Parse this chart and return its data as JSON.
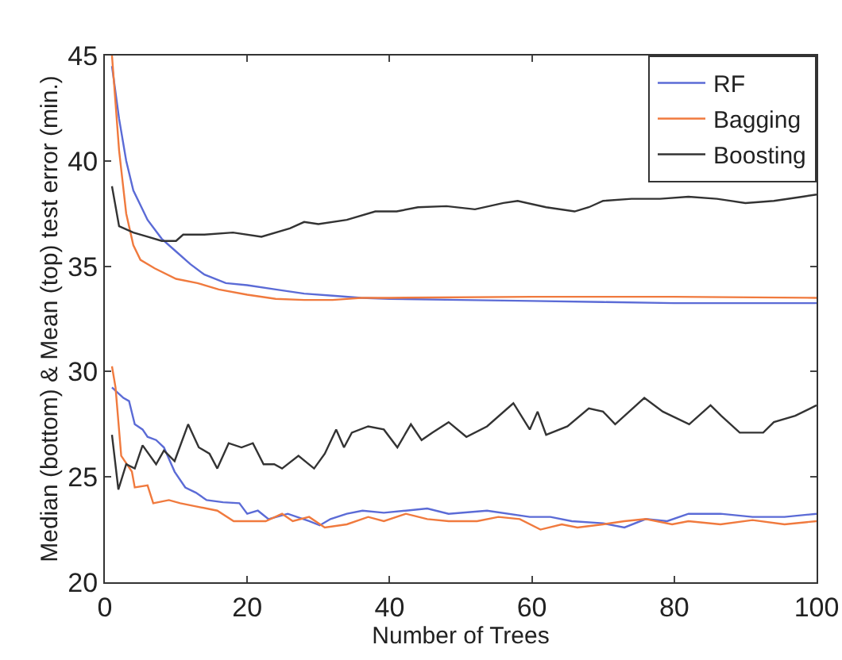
{
  "chart_data": {
    "type": "line",
    "xlabel": "Number of Trees",
    "ylabel": "Median (bottom) & Mean (top) test error (min.)",
    "xlim": [
      0,
      100
    ],
    "xticks": [
      0,
      20,
      40,
      60,
      80,
      100
    ],
    "ylim": [
      20,
      45
    ],
    "yticks": [
      20,
      25,
      30,
      35,
      40,
      45
    ],
    "grid": false,
    "legend": "top right",
    "marker": "none",
    "line_style": "solid",
    "series": [
      {
        "name": "RF",
        "color": "#5b6bd6",
        "x": [
          1,
          2,
          3,
          4,
          6,
          8,
          10,
          12,
          14,
          17,
          20,
          24,
          28,
          32,
          36,
          40,
          50,
          60,
          70,
          80,
          90,
          100
        ],
        "values": [
          44.5,
          42,
          40,
          38.6,
          37.2,
          36.3,
          35.7,
          35.1,
          34.6,
          34.2,
          34.1,
          33.9,
          33.7,
          33.6,
          33.5,
          33.45,
          33.4,
          33.35,
          33.3,
          33.25,
          33.25,
          33.25
        ]
      },
      {
        "name": "Bagging",
        "color": "#f07a3e",
        "x": [
          1,
          2,
          3,
          4,
          5,
          7,
          10,
          13,
          16,
          20,
          24,
          28,
          32,
          36,
          40,
          60,
          80,
          100
        ],
        "values": [
          45,
          40.5,
          37.5,
          36,
          35.3,
          34.9,
          34.4,
          34.2,
          33.9,
          33.65,
          33.45,
          33.4,
          33.4,
          33.5,
          33.5,
          33.55,
          33.55,
          33.5
        ]
      },
      {
        "name": "Boosting",
        "color": "#333333",
        "x": [
          1,
          2,
          4,
          6,
          8,
          10,
          11,
          14,
          18,
          22,
          26,
          28,
          30,
          34,
          38,
          41,
          44,
          48,
          52,
          56,
          58,
          62,
          66,
          68,
          70,
          74,
          78,
          82,
          86,
          90,
          94,
          98,
          100
        ],
        "values": [
          38.8,
          36.9,
          36.6,
          36.4,
          36.2,
          36.2,
          36.5,
          36.5,
          36.6,
          36.4,
          36.8,
          37.1,
          37,
          37.2,
          37.6,
          37.6,
          37.8,
          37.85,
          37.7,
          38,
          38.1,
          37.8,
          37.6,
          37.8,
          38.1,
          38.2,
          38.2,
          38.3,
          38.2,
          38,
          38.1,
          38.3,
          38.4
        ]
      },
      {
        "color": "#5b6bd6",
        "x": [
          1,
          2.6,
          3.4,
          4.2,
          5.3,
          6,
          7.2,
          8.3,
          9.8,
          11.3,
          12.8,
          14.3,
          16.6,
          18.9,
          20,
          21.5,
          23,
          25.7,
          28.7,
          30.2,
          31.7,
          34,
          36.2,
          39.2,
          42.3,
          45.3,
          48.3,
          53.7,
          59.7,
          62.6,
          65.6,
          70,
          73,
          76,
          79,
          82,
          86.5,
          91,
          95.5,
          100
        ],
        "values": [
          29.25,
          28.75,
          28.6,
          27.5,
          27.25,
          26.9,
          26.75,
          26.4,
          25.25,
          24.5,
          24.25,
          23.9,
          23.8,
          23.75,
          23.25,
          23.4,
          23,
          23.25,
          22.9,
          22.7,
          23,
          23.25,
          23.4,
          23.3,
          23.4,
          23.5,
          23.25,
          23.4,
          23.1,
          23.1,
          22.9,
          22.8,
          22.6,
          23,
          22.9,
          23.25,
          23.25,
          23.1,
          23.1,
          23.25
        ]
      },
      {
        "color": "#f07a3e",
        "x": [
          1,
          1.5,
          2.3,
          3.8,
          4.2,
          6,
          6.8,
          9,
          10.6,
          12.8,
          15.8,
          18.1,
          20.4,
          22.6,
          24.9,
          26.4,
          28.7,
          30.9,
          34,
          37,
          39.2,
          42.3,
          45.3,
          48.3,
          52.3,
          55.3,
          58.3,
          61.2,
          64.2,
          66.4,
          70,
          73,
          76,
          79.7,
          82,
          86.5,
          91,
          95.5,
          100
        ],
        "values": [
          30.25,
          29.25,
          26,
          25.25,
          24.5,
          24.6,
          23.75,
          23.9,
          23.75,
          23.6,
          23.4,
          22.9,
          22.9,
          22.9,
          23.25,
          22.9,
          23.1,
          22.6,
          22.75,
          23.1,
          22.9,
          23.25,
          23,
          22.9,
          22.9,
          23.1,
          23,
          22.5,
          22.75,
          22.6,
          22.75,
          22.9,
          23,
          22.75,
          22.9,
          22.75,
          22.95,
          22.75,
          22.9
        ]
      },
      {
        "color": "#333333",
        "x": [
          1,
          1.9,
          3,
          4.2,
          5.3,
          7.2,
          8.3,
          9.8,
          11.7,
          13.2,
          14.7,
          15.8,
          17.4,
          19.2,
          20.8,
          22.3,
          23.8,
          24.9,
          27.2,
          29.4,
          30.9,
          32.5,
          33.6,
          34.7,
          37,
          39.2,
          41.1,
          43,
          44.5,
          46,
          48.3,
          50.8,
          53.7,
          57.4,
          59.7,
          60.8,
          62,
          65,
          68,
          70,
          71.7,
          75.8,
          78.4,
          82.1,
          85.1,
          86.6,
          89.2,
          92.5,
          94,
          97,
          100
        ],
        "values": [
          27,
          24.4,
          25.6,
          25.4,
          26.5,
          25.6,
          26.25,
          25.75,
          27.5,
          26.4,
          26.1,
          25.4,
          26.6,
          26.4,
          26.6,
          25.6,
          25.6,
          25.4,
          26,
          25.4,
          26.1,
          27.25,
          26.4,
          27.1,
          27.4,
          27.25,
          26.4,
          27.5,
          26.75,
          27.1,
          27.6,
          26.9,
          27.4,
          28.5,
          27.25,
          28.1,
          27,
          27.4,
          28.25,
          28.1,
          27.5,
          28.75,
          28.1,
          27.5,
          28.4,
          27.9,
          27.1,
          27.1,
          27.6,
          27.9,
          28.4
        ]
      }
    ]
  }
}
